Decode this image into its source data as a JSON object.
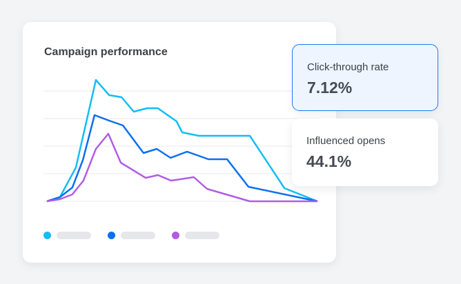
{
  "title": "Campaign performance",
  "metrics": [
    {
      "label": "Click-through rate",
      "value": "7.12%"
    },
    {
      "label": "Influenced opens",
      "value": "44.1%"
    }
  ],
  "chart_data": {
    "type": "line",
    "title": "Campaign performance",
    "grid": true,
    "ylim": [
      0,
      100
    ],
    "xlim": [
      0,
      100
    ],
    "legend": "bottom",
    "series": [
      {
        "color": "#12bdf5",
        "x": [
          0,
          4.8,
          10.7,
          18.1,
          23,
          27.6,
          32.1,
          37,
          41,
          47.9,
          50,
          56.1,
          75,
          87.8,
          100
        ],
        "y": [
          0,
          3,
          24.5,
          88,
          77,
          75.5,
          65,
          67.5,
          67.5,
          58,
          50,
          47.5,
          47.5,
          9.5,
          0
        ]
      },
      {
        "color": "#0a6ff0",
        "x": [
          0,
          4.8,
          9.4,
          13.3,
          17.6,
          23,
          28.1,
          35.7,
          40.6,
          45.7,
          51.8,
          59.7,
          66.6,
          74.5,
          100
        ],
        "y": [
          0,
          3,
          10,
          30,
          62.5,
          58.5,
          55,
          35,
          38,
          31.5,
          36,
          30.5,
          30.5,
          10.5,
          0
        ]
      },
      {
        "color": "#b05ce6",
        "x": [
          0,
          4.8,
          9.4,
          13.5,
          18.1,
          22.7,
          27.3,
          36.5,
          41,
          45.9,
          54.3,
          59.2,
          75,
          100
        ],
        "y": [
          0,
          1.5,
          5,
          15,
          38,
          49,
          28,
          17,
          19,
          15,
          17.5,
          9,
          0,
          0
        ]
      }
    ]
  }
}
